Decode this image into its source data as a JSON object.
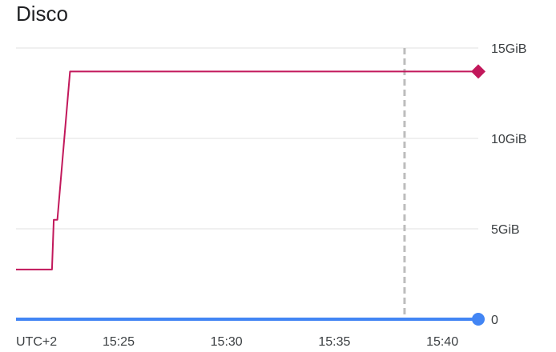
{
  "chart_data": {
    "type": "line",
    "title": "Disco",
    "timezone_label": "UTC+2",
    "x_ticks": [
      "15:25",
      "15:30",
      "15:35",
      "15:40"
    ],
    "y_ticks": [
      {
        "value": 0,
        "label": "0"
      },
      {
        "value": 5,
        "label": "5GiB"
      },
      {
        "value": 10,
        "label": "10GiB"
      },
      {
        "value": 15,
        "label": "15GiB"
      }
    ],
    "x_unit": "minutes",
    "xlim": [
      "15:20:15",
      "15:41:40"
    ],
    "ylim": [
      0,
      15
    ],
    "marker_line_time": "15:38:15",
    "grid": true,
    "series": [
      {
        "color": "#c2185b",
        "end_marker": "diamond",
        "points": [
          {
            "x": "15:20:15",
            "y": 2.75
          },
          {
            "x": "15:21:55",
            "y": 2.75
          },
          {
            "x": "15:22:00",
            "y": 5.5
          },
          {
            "x": "15:22:10",
            "y": 5.5
          },
          {
            "x": "15:22:45",
            "y": 13.7
          },
          {
            "x": "15:41:40",
            "y": 13.7
          }
        ]
      },
      {
        "color": "#4285f4",
        "end_marker": "circle",
        "points": [
          {
            "x": "15:20:15",
            "y": 0
          },
          {
            "x": "15:41:40",
            "y": 0
          }
        ]
      }
    ]
  }
}
